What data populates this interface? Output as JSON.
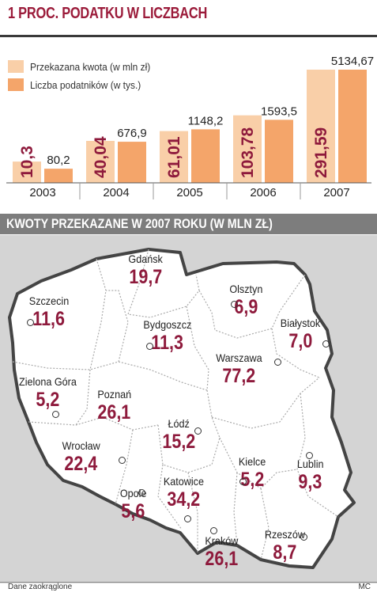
{
  "title": "1 PROC. PODATKU W LICZBACH",
  "legend": [
    {
      "label": "Przekazana kwota (w mln zł)",
      "color": "#f9cfa8"
    },
    {
      "label": "Liczba podatników (w tys.)",
      "color": "#f4a56a"
    }
  ],
  "chart_data": {
    "type": "bar",
    "categories": [
      "2003",
      "2004",
      "2005",
      "2006",
      "2007"
    ],
    "series": [
      {
        "name": "Przekazana kwota (w mln zł)",
        "values": [
          "10,3",
          "40,04",
          "61,01",
          "103,78",
          "291,59"
        ],
        "color": "#f9cfa8"
      },
      {
        "name": "Liczba podatników (w tys.)",
        "values": [
          "80,2",
          "676,9",
          "1148,2",
          "1593,5",
          "5134,67"
        ],
        "color": "#f4a56a"
      }
    ]
  },
  "map": {
    "title": "KWOTY PRZEKAZANE W 2007 ROKU (W MLN ZŁ)",
    "cities": [
      {
        "name": "Gdańsk",
        "value": "19,7"
      },
      {
        "name": "Olsztyn",
        "value": "6,9"
      },
      {
        "name": "Szczecin",
        "value": "11,6"
      },
      {
        "name": "Bydgoszcz",
        "value": "11,3"
      },
      {
        "name": "Białystok",
        "value": "7,0"
      },
      {
        "name": "Warszawa",
        "value": "77,2"
      },
      {
        "name": "Zielona Góra",
        "value": "5,2"
      },
      {
        "name": "Poznań",
        "value": "26,1"
      },
      {
        "name": "Łódź",
        "value": "15,2"
      },
      {
        "name": "Wrocław",
        "value": "22,4"
      },
      {
        "name": "Kielce",
        "value": "5,2"
      },
      {
        "name": "Lublin",
        "value": "9,3"
      },
      {
        "name": "Opole",
        "value": "5,6"
      },
      {
        "name": "Katowice",
        "value": "34,2"
      },
      {
        "name": "Kraków",
        "value": "26,1"
      },
      {
        "name": "Rzeszów",
        "value": "8,7"
      }
    ]
  },
  "footer": {
    "note": "Dane zaokrąglone",
    "credit": "MC"
  }
}
